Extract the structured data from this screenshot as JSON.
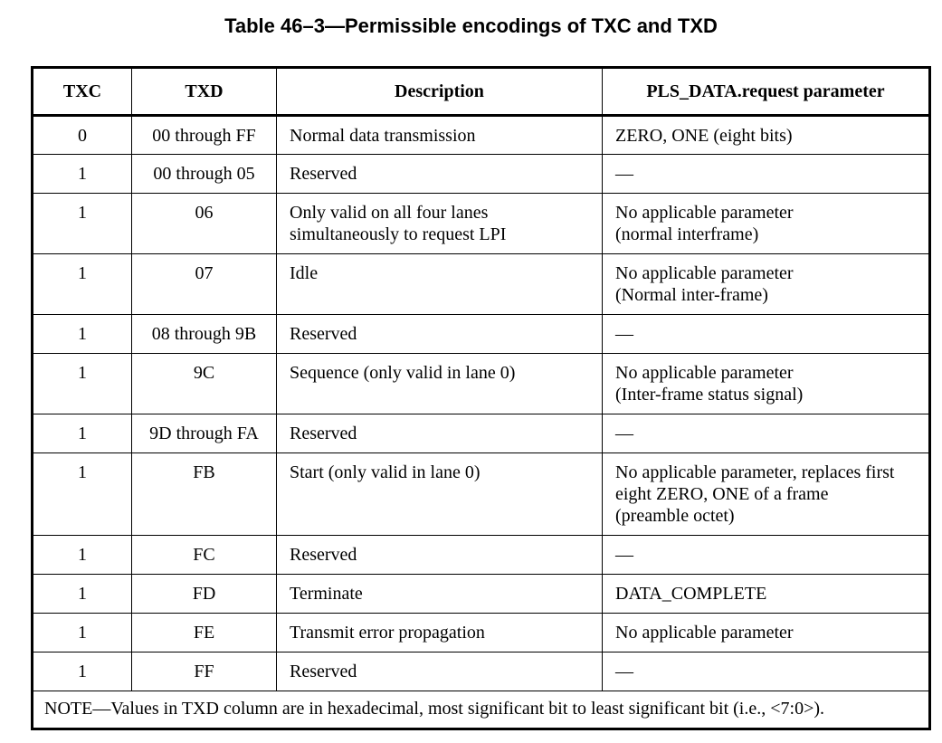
{
  "title": "Table 46–3—Permissible encodings of TXC and TXD",
  "headers": {
    "txc": "TXC",
    "txd": "TXD",
    "description": "Description",
    "param": "PLS_DATA.request parameter"
  },
  "rows": [
    {
      "txc": "0",
      "txd": "00 through FF",
      "description": [
        "Normal data transmission"
      ],
      "param": [
        "ZERO, ONE (eight bits)"
      ]
    },
    {
      "txc": "1",
      "txd": "00 through 05",
      "description": [
        "Reserved"
      ],
      "param": [
        "—"
      ]
    },
    {
      "txc": "1",
      "txd": "06",
      "description": [
        "Only valid on all four lanes",
        "simultaneously to request LPI"
      ],
      "param": [
        "No applicable parameter",
        "(normal interframe)"
      ]
    },
    {
      "txc": "1",
      "txd": "07",
      "description": [
        "Idle"
      ],
      "param": [
        "No applicable parameter",
        "(Normal inter-frame)"
      ]
    },
    {
      "txc": "1",
      "txd": "08 through 9B",
      "description": [
        "Reserved"
      ],
      "param": [
        "—"
      ]
    },
    {
      "txc": "1",
      "txd": "9C",
      "description": [
        "Sequence (only valid in lane 0)"
      ],
      "param": [
        "No applicable parameter",
        "(Inter-frame status signal)"
      ]
    },
    {
      "txc": "1",
      "txd": "9D through FA",
      "description": [
        "Reserved"
      ],
      "param": [
        "—"
      ]
    },
    {
      "txc": "1",
      "txd": "FB",
      "description": [
        "Start (only valid in lane 0)"
      ],
      "param": [
        "No applicable parameter, replaces first",
        "eight ZERO, ONE of a frame",
        "(preamble octet)"
      ]
    },
    {
      "txc": "1",
      "txd": "FC",
      "description": [
        "Reserved"
      ],
      "param": [
        "—"
      ]
    },
    {
      "txc": "1",
      "txd": "FD",
      "description": [
        "Terminate"
      ],
      "param": [
        "DATA_COMPLETE"
      ]
    },
    {
      "txc": "1",
      "txd": "FE",
      "description": [
        "Transmit error propagation"
      ],
      "param": [
        "No applicable parameter"
      ]
    },
    {
      "txc": "1",
      "txd": "FF",
      "description": [
        "Reserved"
      ],
      "param": [
        "—"
      ]
    }
  ],
  "note": "NOTE—Values in TXD column are in hexadecimal, most significant bit to least significant bit (i.e., <7:0>)."
}
